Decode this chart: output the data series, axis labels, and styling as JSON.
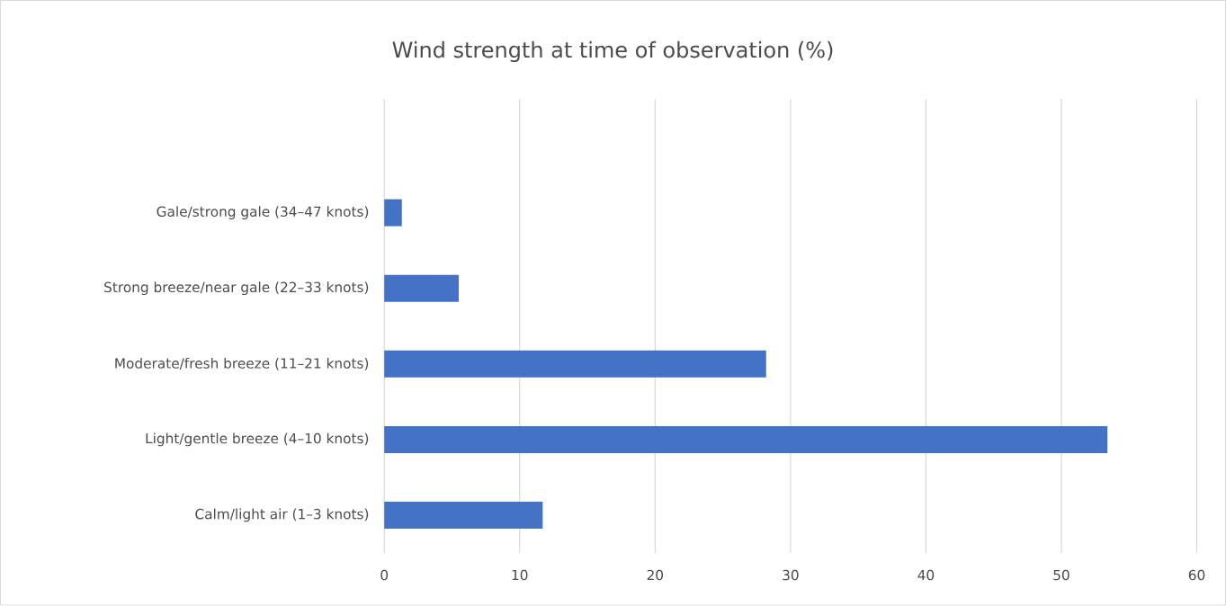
{
  "chart_data": {
    "type": "bar",
    "orientation": "horizontal",
    "title": "Wind strength at time of observation (%)",
    "categories": [
      null,
      "Gale/strong gale (34–47 knots)",
      "Strong breeze/near gale (22–33 knots)",
      "Moderate/fresh breeze (11–21 knots)",
      "Light/gentle breeze (4–10 knots)",
      "Calm/light air (1–3 knots)"
    ],
    "values": [
      null,
      1.3,
      5.5,
      28.2,
      53.4,
      11.7
    ],
    "color": "#4472c4",
    "xlim": [
      0,
      60
    ],
    "xticks": [
      0,
      10,
      20,
      30,
      40,
      50,
      60
    ],
    "grid": "x"
  }
}
